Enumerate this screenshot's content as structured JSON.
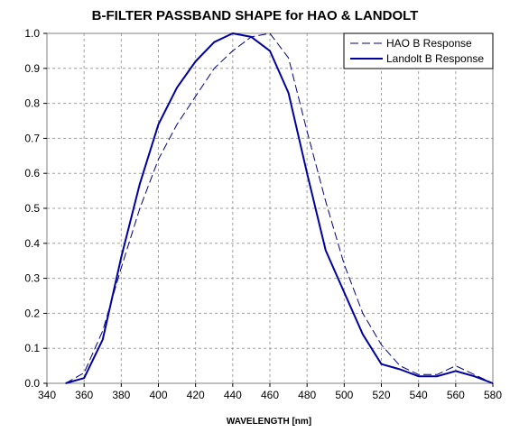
{
  "chart_data": {
    "type": "line",
    "title": "B-FILTER PASSBAND SHAPE for HAO & LANDOLT",
    "xlabel": "WAVELENGTH [nm]",
    "ylabel": "",
    "xlim": [
      340,
      580
    ],
    "ylim": [
      0,
      1.0
    ],
    "x_ticks": [
      "340",
      "360",
      "380",
      "400",
      "420",
      "440",
      "460",
      "480",
      "500",
      "520",
      "540",
      "560",
      "580"
    ],
    "y_ticks": [
      "0.0",
      "0.1",
      "0.2",
      "0.3",
      "0.4",
      "0.5",
      "0.6",
      "0.7",
      "0.8",
      "0.9",
      "1.0"
    ],
    "grid": true,
    "legend_position": "top-right",
    "series": [
      {
        "name": "HAO B Response",
        "style": "dashed",
        "color": "#000080",
        "x": [
          350,
          360,
          370,
          380,
          390,
          400,
          410,
          420,
          430,
          440,
          450,
          460,
          470,
          480,
          490,
          500,
          510,
          520,
          530,
          540,
          550,
          560,
          570,
          580
        ],
        "values": [
          0.0,
          0.03,
          0.15,
          0.33,
          0.5,
          0.64,
          0.74,
          0.82,
          0.9,
          0.95,
          0.99,
          1.0,
          0.93,
          0.72,
          0.52,
          0.34,
          0.2,
          0.11,
          0.05,
          0.025,
          0.025,
          0.05,
          0.025,
          0.0
        ]
      },
      {
        "name": "Landolt B Response",
        "style": "solid",
        "color": "#0000A0",
        "x": [
          350,
          360,
          370,
          380,
          390,
          400,
          410,
          420,
          430,
          440,
          450,
          460,
          470,
          480,
          490,
          500,
          510,
          520,
          530,
          540,
          550,
          560,
          570,
          580
        ],
        "values": [
          0.0,
          0.015,
          0.125,
          0.36,
          0.57,
          0.74,
          0.845,
          0.92,
          0.975,
          1.0,
          0.99,
          0.95,
          0.83,
          0.6,
          0.38,
          0.26,
          0.14,
          0.055,
          0.04,
          0.02,
          0.02,
          0.035,
          0.02,
          0.0
        ]
      }
    ]
  }
}
